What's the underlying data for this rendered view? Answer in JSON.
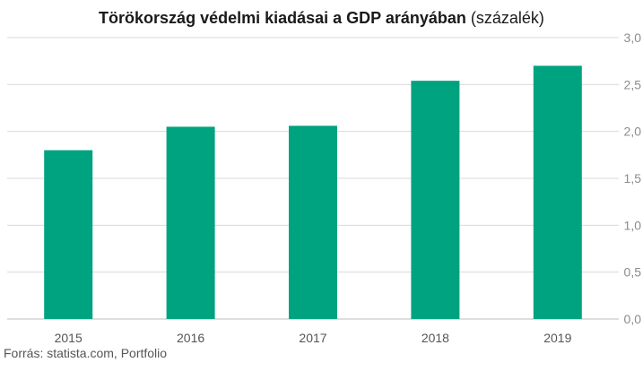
{
  "title": {
    "main": "Törökország védelmi kiadásai a GDP arányában",
    "unit": "(százalék)"
  },
  "source": "Forrás: statista.com, Portfolio",
  "colors": {
    "bar": "#00a37f",
    "grid": "#d9d9d9",
    "tick_text": "#8c8c8c",
    "axis": "#bdbdbd"
  },
  "chart_data": {
    "type": "bar",
    "categories": [
      "2015",
      "2016",
      "2017",
      "2018",
      "2019"
    ],
    "values": [
      1.8,
      2.05,
      2.06,
      2.54,
      2.7
    ],
    "title": "Törökország védelmi kiadásai a GDP arányában (százalék)",
    "xlabel": "",
    "ylabel": "",
    "ylim": [
      0,
      3.0
    ],
    "yticks": [
      "0,0",
      "0,5",
      "1,0",
      "1,5",
      "2,0",
      "2,5",
      "3,0"
    ],
    "y_axis_position": "right",
    "grid": true,
    "legend": "none"
  }
}
